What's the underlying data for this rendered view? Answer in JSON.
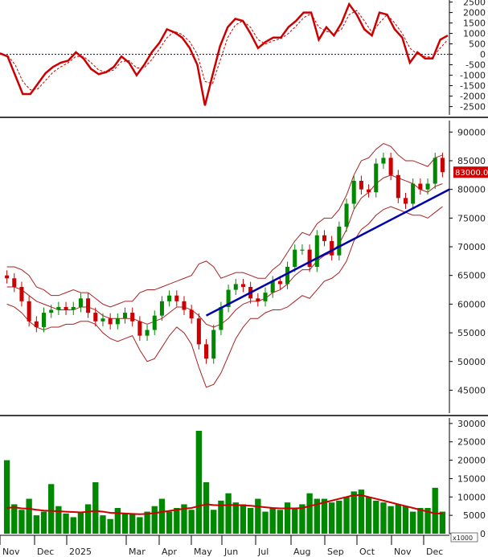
{
  "chart_data": [
    {
      "type": "line",
      "panel": "oscillator",
      "y_ticks": [
        "2500",
        "2000",
        "1500",
        "1000",
        "500",
        "0",
        "-500",
        "-1000",
        "-1500",
        "-2000",
        "-2500"
      ],
      "y_tick_values": [
        2500,
        2000,
        1500,
        1000,
        500,
        0,
        -500,
        -1000,
        -1500,
        -2000,
        -2500
      ],
      "ylim": [
        -2900,
        2600
      ],
      "zero_line": true,
      "series": [
        {
          "role": "oscillator",
          "color": "#cc0000",
          "values": [
            50,
            -100,
            -1000,
            -1900,
            -1900,
            -1400,
            -900,
            -600,
            -400,
            -300,
            100,
            -200,
            -700,
            -950,
            -850,
            -600,
            -100,
            -400,
            -1000,
            -500,
            100,
            550,
            1200,
            1050,
            800,
            300,
            -500,
            -2450,
            -1000,
            400,
            1300,
            1700,
            1600,
            1000,
            300,
            600,
            800,
            800,
            1300,
            1600,
            2000,
            2000,
            700,
            1300,
            900,
            1500,
            2400,
            1900,
            1200,
            900,
            2000,
            1900,
            1200,
            800,
            -400,
            100,
            -200,
            -200,
            700,
            900
          ]
        },
        {
          "role": "signal",
          "color": "#cc0000",
          "dashed": true,
          "values": [
            0,
            -50,
            -500,
            -1300,
            -1700,
            -1650,
            -1250,
            -850,
            -600,
            -400,
            -100,
            -100,
            -400,
            -750,
            -850,
            -750,
            -350,
            -300,
            -650,
            -650,
            -250,
            250,
            800,
            1100,
            950,
            600,
            0,
            -1300,
            -1400,
            -300,
            800,
            1400,
            1600,
            1300,
            700,
            500,
            650,
            750,
            1000,
            1350,
            1750,
            1950,
            1300,
            1100,
            1000,
            1200,
            1900,
            2100,
            1600,
            1050,
            1500,
            1900,
            1500,
            1000,
            300,
            0,
            -100,
            -150,
            300,
            700
          ]
        }
      ]
    },
    {
      "type": "candlestick",
      "panel": "price",
      "y_ticks": [
        "90000",
        "85000",
        "80000",
        "75000",
        "70000",
        "65000",
        "60000",
        "55000",
        "50000",
        "45000"
      ],
      "y_tick_values": [
        90000,
        85000,
        80000,
        75000,
        70000,
        65000,
        60000,
        55000,
        50000,
        45000
      ],
      "ylim": [
        41000,
        92000
      ],
      "last_price_label": "83000.0",
      "last_price": 83000,
      "x_labels": [
        "Nov",
        "Dec",
        "2025",
        "Mar",
        "Apr",
        "May",
        "Jun",
        "Jul",
        "Aug",
        "Sep",
        "Oct",
        "Nov",
        "Dec"
      ],
      "close": [
        64500,
        63000,
        60500,
        57000,
        56000,
        58500,
        59000,
        59500,
        59000,
        59500,
        61000,
        58500,
        57000,
        57500,
        56500,
        57500,
        58500,
        57000,
        54500,
        55500,
        58000,
        60500,
        61500,
        60500,
        59000,
        57500,
        53000,
        50500,
        55500,
        59500,
        62500,
        63500,
        63000,
        61000,
        60500,
        62000,
        64000,
        63500,
        66500,
        69500,
        69500,
        66500,
        72000,
        71000,
        68500,
        73500,
        77500,
        81500,
        80000,
        79500,
        84500,
        85500,
        82500,
        78500,
        77500,
        81000,
        80000,
        81000,
        85500,
        83000
      ],
      "upper_band": [
        66500,
        66500,
        66000,
        65000,
        63000,
        62500,
        61500,
        61500,
        62000,
        62500,
        62000,
        62000,
        61000,
        60000,
        59500,
        60000,
        60500,
        60500,
        62000,
        62500,
        62500,
        63000,
        63500,
        64000,
        64500,
        65000,
        67000,
        67500,
        66500,
        64500,
        65000,
        65500,
        65500,
        65000,
        64500,
        64500,
        66000,
        67000,
        69000,
        71000,
        72500,
        72000,
        74000,
        75000,
        75000,
        76500,
        79000,
        82500,
        85000,
        85500,
        87000,
        88000,
        87500,
        86000,
        85000,
        85000,
        84500,
        84000,
        85500,
        86000
      ],
      "middle_band": [
        63000,
        63000,
        62500,
        61500,
        60500,
        60000,
        59500,
        59000,
        59000,
        59000,
        59500,
        59500,
        59000,
        58000,
        57500,
        57500,
        57500,
        57500,
        57000,
        56500,
        57000,
        57500,
        58500,
        59500,
        59500,
        59000,
        58000,
        56500,
        56000,
        56500,
        57500,
        59000,
        60000,
        60500,
        60500,
        61000,
        62000,
        62500,
        63500,
        65000,
        66000,
        66000,
        67500,
        68500,
        69000,
        70500,
        73000,
        76500,
        78500,
        79500,
        81000,
        82000,
        82500,
        82000,
        81500,
        81000,
        80000,
        79500,
        80500,
        81000
      ],
      "lower_band": [
        60000,
        59500,
        58500,
        57000,
        56000,
        55500,
        56000,
        56000,
        56500,
        56500,
        57000,
        57000,
        56500,
        55000,
        54000,
        53500,
        54000,
        54500,
        52000,
        50000,
        50500,
        52500,
        54500,
        56000,
        55000,
        53000,
        49000,
        45500,
        46000,
        48000,
        51000,
        54000,
        56000,
        57500,
        57500,
        58500,
        59000,
        59000,
        59500,
        60500,
        61500,
        61000,
        62500,
        64000,
        64500,
        65500,
        67500,
        71000,
        73000,
        74000,
        75500,
        76500,
        77000,
        76500,
        76000,
        75500,
        75500,
        75000,
        76000,
        77000
      ],
      "trendline": {
        "color": "#0000aa",
        "from": {
          "index": 27,
          "value": 58000
        },
        "to": {
          "index": 60,
          "value": 80000
        }
      }
    },
    {
      "type": "bar",
      "panel": "volume",
      "y_ticks": [
        "30000",
        "25000",
        "20000",
        "15000",
        "10000",
        "5000",
        "0"
      ],
      "y_tick_values": [
        30000,
        25000,
        20000,
        15000,
        10000,
        5000,
        0
      ],
      "ylim": [
        0,
        31500
      ],
      "unit_label": "x1000",
      "bar_color": "#008800",
      "ma_color": "#cc0000",
      "values": [
        20000,
        8000,
        6500,
        9500,
        5000,
        6000,
        13500,
        7500,
        5500,
        4500,
        6000,
        8000,
        14000,
        5000,
        4000,
        7000,
        5500,
        5500,
        4500,
        6000,
        7500,
        9500,
        6000,
        7000,
        8000,
        6500,
        28000,
        14000,
        6500,
        9000,
        11000,
        8500,
        8000,
        7000,
        9500,
        6000,
        7000,
        6500,
        8500,
        7000,
        8000,
        11000,
        9500,
        9500,
        8500,
        9000,
        10000,
        11500,
        12000,
        10000,
        9000,
        8500,
        7500,
        8000,
        7500,
        6000,
        7000,
        7000,
        12500,
        6000
      ],
      "ma": [
        7000,
        7200,
        6900,
        6800,
        6500,
        6300,
        6200,
        6100,
        6000,
        5900,
        5800,
        6000,
        6200,
        6000,
        5700,
        5600,
        5500,
        5400,
        5300,
        5400,
        5600,
        5900,
        6200,
        6500,
        6800,
        7000,
        7500,
        8000,
        7800,
        7700,
        7800,
        7800,
        7700,
        7600,
        7400,
        7200,
        7000,
        6900,
        6900,
        6900,
        7000,
        7500,
        8000,
        8500,
        9000,
        9500,
        10000,
        10500,
        10500,
        10000,
        9500,
        9000,
        8500,
        8000,
        7500,
        7000,
        6500,
        6000,
        5500,
        5500
      ]
    }
  ]
}
